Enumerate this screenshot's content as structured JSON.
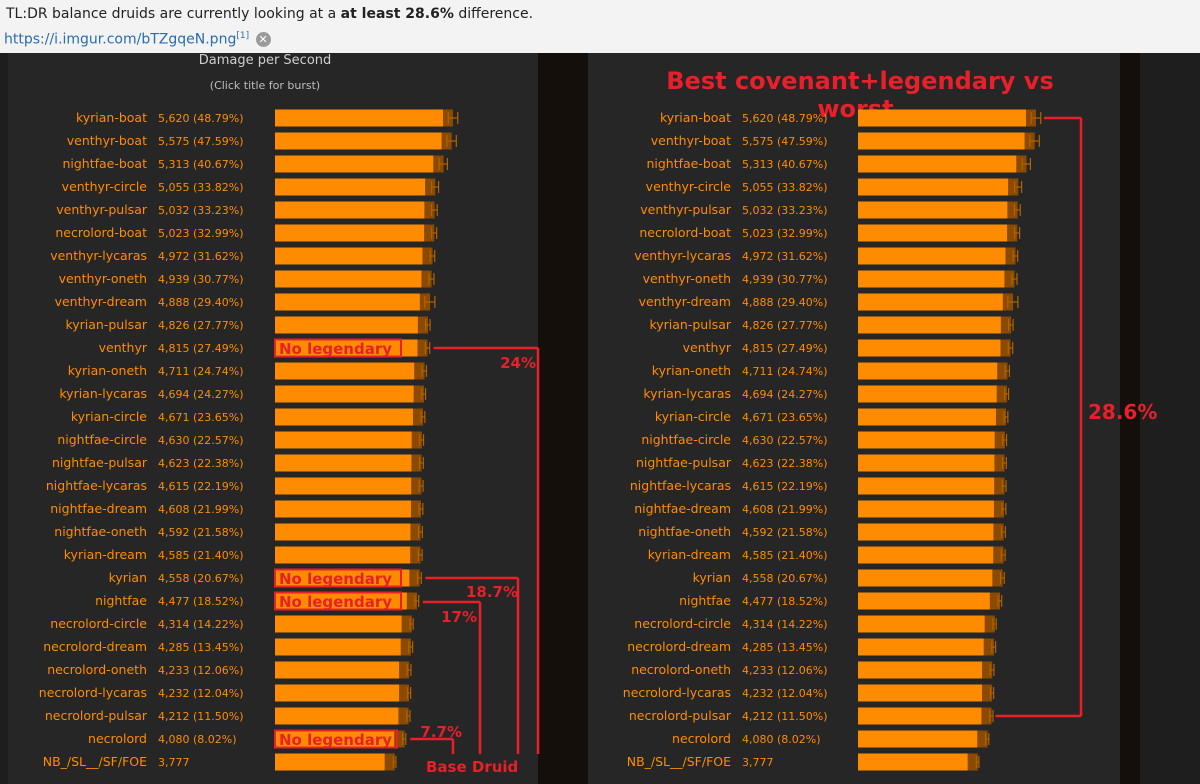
{
  "post": {
    "text_before": "TL:DR balance druids are currently looking at a ",
    "text_bold": "at least 28.6%",
    "text_after": " difference.",
    "link_text": "https://i.imgur.com/bTZgqeN.png",
    "footnote": "[1]",
    "close_icon": "close-icon"
  },
  "colors": {
    "bar": "#ff8c00",
    "bar_dark": "#8a4a00",
    "label": "#ff8c00",
    "annotation": "#e8202a",
    "panel_bg": "#262626"
  },
  "left_panel": {
    "title": "Damage per Second",
    "subtitle": "(Click title for burst)"
  },
  "right_panel": {
    "title": "Best covenant+legendary vs worst."
  },
  "chart_data": {
    "type": "bar",
    "orientation": "horizontal",
    "metric": "Damage per Second",
    "categories": [
      "kyrian-boat",
      "venthyr-boat",
      "nightfae-boat",
      "venthyr-circle",
      "venthyr-pulsar",
      "necrolord-boat",
      "venthyr-lycaras",
      "venthyr-oneth",
      "venthyr-dream",
      "kyrian-pulsar",
      "venthyr",
      "kyrian-oneth",
      "kyrian-lycaras",
      "kyrian-circle",
      "nightfae-circle",
      "nightfae-pulsar",
      "nightfae-lycaras",
      "nightfae-dream",
      "nightfae-oneth",
      "kyrian-dream",
      "kyrian",
      "nightfae",
      "necrolord-circle",
      "necrolord-dream",
      "necrolord-oneth",
      "necrolord-lycaras",
      "necrolord-pulsar",
      "necrolord",
      "NB_/SL__/SF/FOE"
    ],
    "values": [
      5620,
      5575,
      5313,
      5055,
      5032,
      5023,
      4972,
      4939,
      4888,
      4826,
      4815,
      4711,
      4694,
      4671,
      4630,
      4623,
      4615,
      4608,
      4592,
      4585,
      4558,
      4477,
      4314,
      4285,
      4233,
      4232,
      4212,
      4080,
      3777
    ],
    "value_labels": [
      "5,620",
      "5,575",
      "5,313",
      "5,055",
      "5,032",
      "5,023",
      "4,972",
      "4,939",
      "4,888",
      "4,826",
      "4,815",
      "4,711",
      "4,694",
      "4,671",
      "4,630",
      "4,623",
      "4,615",
      "4,608",
      "4,592",
      "4,585",
      "4,558",
      "4,477",
      "4,314",
      "4,285",
      "4,233",
      "4,232",
      "4,212",
      "4,080",
      "3,777"
    ],
    "percent_labels": [
      "(48.79%)",
      "(47.59%)",
      "(40.67%)",
      "(33.82%)",
      "(33.23%)",
      "(32.99%)",
      "(31.62%)",
      "(30.77%)",
      "(29.40%)",
      "(27.77%)",
      "(27.49%)",
      "(24.74%)",
      "(24.27%)",
      "(23.65%)",
      "(22.57%)",
      "(22.38%)",
      "(22.19%)",
      "(21.99%)",
      "(21.58%)",
      "(21.40%)",
      "(20.67%)",
      "(18.52%)",
      "(14.22%)",
      "(13.45%)",
      "(12.06%)",
      "(12.04%)",
      "(11.50%)",
      "(8.02%)",
      ""
    ],
    "errors": [
      150,
      150,
      130,
      110,
      90,
      80,
      70,
      80,
      160,
      70,
      70,
      70,
      60,
      60,
      60,
      60,
      60,
      60,
      60,
      60,
      60,
      60,
      50,
      60,
      60,
      50,
      50,
      50,
      40
    ]
  },
  "left_annotations": {
    "bar_overlays": [
      {
        "row": 10,
        "text": "No legendary"
      },
      {
        "row": 20,
        "text": "No legendary"
      },
      {
        "row": 21,
        "text": "No legendary"
      },
      {
        "row": 27,
        "text": "No legendary"
      }
    ],
    "percent_labels": [
      "24%",
      "18.7%",
      "17%",
      "7.7%"
    ],
    "base_label": "Base Druid"
  },
  "right_annotations": {
    "percent_label": "28.6%"
  }
}
